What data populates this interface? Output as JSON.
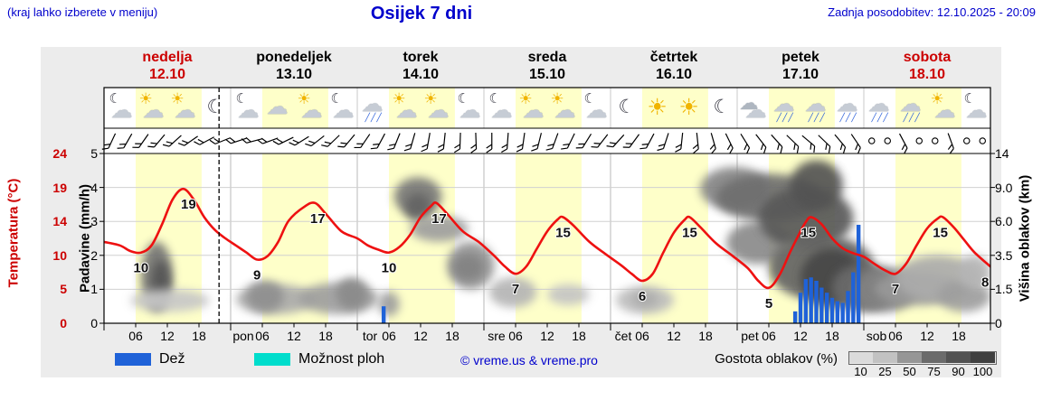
{
  "header": {
    "menu_hint": "(kraj lahko izberete v meniju)",
    "title": "Osijek 7 dni",
    "last_update": "Zadnja posodobitev: 12.10.2025 - 20:09"
  },
  "days": [
    {
      "name": "nedelja",
      "date": "12.10",
      "red": true
    },
    {
      "name": "ponedeljek",
      "date": "13.10",
      "red": false
    },
    {
      "name": "torek",
      "date": "14.10",
      "red": false
    },
    {
      "name": "sreda",
      "date": "15.10",
      "red": false
    },
    {
      "name": "četrtek",
      "date": "16.10",
      "red": false
    },
    {
      "name": "petek",
      "date": "17.10",
      "red": false
    },
    {
      "name": "sobota",
      "date": "18.10",
      "red": true
    }
  ],
  "axes": {
    "temperature": {
      "label": "Temperatura (°C)",
      "ticks": [
        "24",
        "19",
        "14",
        "10",
        "5",
        "0"
      ]
    },
    "precip": {
      "label": "Padavine (mm/h)",
      "ticks": [
        "5",
        "4",
        "3",
        "2",
        "1",
        "0"
      ]
    },
    "cloudheight": {
      "label": "Višina oblakov (km)",
      "ticks": [
        "14",
        "9.0",
        "6.0",
        "3.5",
        "1.5",
        "0"
      ]
    },
    "x_hour_labels": [
      "06",
      "12",
      "18"
    ],
    "x_day_abbr": [
      "pon",
      "tor",
      "sre",
      "čet",
      "pet",
      "sob"
    ]
  },
  "legend": {
    "rain_label": "Dež",
    "showers_label": "Možnost ploh",
    "copyright": "© vreme.us & vreme.pro",
    "cloud_density_label": "Gostota oblakov (%)",
    "density_values": [
      "10",
      "25",
      "50",
      "75",
      "90",
      "100"
    ]
  },
  "colors": {
    "header_blue": "#0000cc",
    "red": "#cc0000",
    "curve": "#ee1111",
    "rain": "#1f62d8",
    "showers": "#00ddcc",
    "day_band": "#feffc9",
    "bg_gray": "#ececec"
  },
  "chart_data": {
    "type": "line",
    "title": "Osijek 7 dni",
    "x_unit": "hours_from_sunday_00",
    "x_range": [
      0,
      168
    ],
    "ylabel_left": "Padavine (mm/h)",
    "ylabel_far_left": "Temperatura (°C)",
    "ylabel_right": "Višina oblakov (km)",
    "day_night": {
      "day_start_hour": 6,
      "day_end_hour": 18.5
    },
    "current_time_hour": 21.8,
    "temperature_c": {
      "series": [
        [
          0,
          11.5
        ],
        [
          3,
          11
        ],
        [
          5,
          10.2
        ],
        [
          7,
          10
        ],
        [
          9,
          11
        ],
        [
          11,
          14
        ],
        [
          13,
          17.5
        ],
        [
          15,
          19
        ],
        [
          17,
          17.5
        ],
        [
          19,
          15
        ],
        [
          21,
          13.2
        ],
        [
          23,
          12
        ],
        [
          25,
          11
        ],
        [
          27,
          10
        ],
        [
          29,
          9
        ],
        [
          31,
          9.5
        ],
        [
          33,
          11.5
        ],
        [
          35,
          14.5
        ],
        [
          38,
          16.5
        ],
        [
          40,
          17
        ],
        [
          42,
          15.5
        ],
        [
          45,
          13
        ],
        [
          48,
          12
        ],
        [
          50,
          11
        ],
        [
          52,
          10.4
        ],
        [
          54,
          10
        ],
        [
          56,
          10.8
        ],
        [
          58,
          12.5
        ],
        [
          60,
          15
        ],
        [
          62,
          16.6
        ],
        [
          63,
          17
        ],
        [
          65,
          15.5
        ],
        [
          68,
          13
        ],
        [
          71,
          11.5
        ],
        [
          74,
          9.5
        ],
        [
          76,
          8
        ],
        [
          78,
          7
        ],
        [
          80,
          8
        ],
        [
          82,
          10.5
        ],
        [
          84,
          13
        ],
        [
          86,
          14.7
        ],
        [
          87,
          15
        ],
        [
          89,
          13.8
        ],
        [
          92,
          11.5
        ],
        [
          95,
          9.8
        ],
        [
          98,
          8.2
        ],
        [
          100,
          7
        ],
        [
          102,
          6
        ],
        [
          104,
          7
        ],
        [
          106,
          10
        ],
        [
          108,
          12.8
        ],
        [
          110,
          14.6
        ],
        [
          111,
          15
        ],
        [
          113,
          13.6
        ],
        [
          116,
          11.3
        ],
        [
          119,
          9.6
        ],
        [
          122,
          7.8
        ],
        [
          124,
          6
        ],
        [
          126,
          5
        ],
        [
          128,
          6.8
        ],
        [
          130,
          10
        ],
        [
          132,
          13
        ],
        [
          133,
          14.3
        ],
        [
          134,
          15
        ],
        [
          136,
          14
        ],
        [
          138,
          12
        ],
        [
          140,
          10.6
        ],
        [
          142,
          9.9
        ],
        [
          144,
          9.4
        ],
        [
          146,
          8.4
        ],
        [
          148,
          7.5
        ],
        [
          150,
          7
        ],
        [
          152,
          8.4
        ],
        [
          154,
          11
        ],
        [
          156,
          13.4
        ],
        [
          158,
          14.8
        ],
        [
          159,
          15
        ],
        [
          161,
          13.6
        ],
        [
          163,
          11.8
        ],
        [
          165,
          10
        ],
        [
          168,
          8
        ]
      ],
      "point_labels": [
        {
          "t": 7,
          "v": 10
        },
        {
          "t": 16,
          "v": 19
        },
        {
          "t": 29,
          "v": 9
        },
        {
          "t": 40.5,
          "v": 17
        },
        {
          "t": 54,
          "v": 10
        },
        {
          "t": 63.5,
          "v": 17
        },
        {
          "t": 78,
          "v": 7
        },
        {
          "t": 87,
          "v": 15
        },
        {
          "t": 102,
          "v": 6
        },
        {
          "t": 111,
          "v": 15
        },
        {
          "t": 126,
          "v": 5
        },
        {
          "t": 133.5,
          "v": 15
        },
        {
          "t": 150,
          "v": 7
        },
        {
          "t": 158.5,
          "v": 15
        },
        {
          "t": 167,
          "v": 8
        }
      ]
    },
    "precip_mm_h": {
      "bars": [
        {
          "t": 53,
          "v": 0.5
        },
        {
          "t": 131,
          "v": 0.35
        },
        {
          "t": 132,
          "v": 0.9
        },
        {
          "t": 133,
          "v": 1.3
        },
        {
          "t": 134,
          "v": 1.35
        },
        {
          "t": 135,
          "v": 1.25
        },
        {
          "t": 136,
          "v": 1.05
        },
        {
          "t": 137,
          "v": 0.9
        },
        {
          "t": 138,
          "v": 0.75
        },
        {
          "t": 139,
          "v": 0.65
        },
        {
          "t": 140,
          "v": 0.6
        },
        {
          "t": 141,
          "v": 0.95
        },
        {
          "t": 142,
          "v": 1.5
        },
        {
          "t": 143,
          "v": 2.9
        }
      ]
    },
    "cloud_cover": {
      "height_anchors_km": [
        0,
        1.5,
        3.5,
        6,
        9,
        14
      ],
      "blobs": [
        {
          "t0": 7,
          "t1": 13,
          "k0": 0.5,
          "k1": 4.5,
          "d": 70
        },
        {
          "t0": 9,
          "t1": 12.5,
          "k0": 0.8,
          "k1": 3.2,
          "d": 88
        },
        {
          "t0": 5,
          "t1": 20,
          "k0": 0.5,
          "k1": 1.5,
          "d": 22
        },
        {
          "t0": 25,
          "t1": 40,
          "k0": 0.4,
          "k1": 1.8,
          "d": 38
        },
        {
          "t0": 27,
          "t1": 34,
          "k0": 0.5,
          "k1": 2.0,
          "d": 55
        },
        {
          "t0": 37,
          "t1": 52,
          "k0": 0.4,
          "k1": 1.9,
          "d": 45
        },
        {
          "t0": 44,
          "t1": 50,
          "k0": 0.6,
          "k1": 2.2,
          "d": 58
        },
        {
          "t0": 52,
          "t1": 56,
          "k0": 0.3,
          "k1": 1.4,
          "d": 45
        },
        {
          "t0": 55,
          "t1": 64,
          "k0": 6.5,
          "k1": 10.5,
          "d": 68
        },
        {
          "t0": 57,
          "t1": 62,
          "k0": 6.0,
          "k1": 8.5,
          "d": 80
        },
        {
          "t0": 58,
          "t1": 69,
          "k0": 4.5,
          "k1": 6.5,
          "d": 45
        },
        {
          "t0": 65,
          "t1": 74,
          "k0": 1.5,
          "k1": 4.5,
          "d": 52
        },
        {
          "t0": 66,
          "t1": 72,
          "k0": 2.0,
          "k1": 3.6,
          "d": 62
        },
        {
          "t0": 73,
          "t1": 82,
          "k0": 0.7,
          "k1": 2.2,
          "d": 32
        },
        {
          "t0": 84,
          "t1": 92,
          "k0": 0.8,
          "k1": 1.8,
          "d": 24
        },
        {
          "t0": 97,
          "t1": 108,
          "k0": 0.4,
          "k1": 1.7,
          "d": 28
        },
        {
          "t0": 100,
          "t1": 105,
          "k0": 0.7,
          "k1": 1.4,
          "d": 38
        },
        {
          "t0": 113,
          "t1": 126,
          "k0": 7,
          "k1": 12,
          "d": 60
        },
        {
          "t0": 116,
          "t1": 136,
          "k0": 6,
          "k1": 11,
          "d": 74
        },
        {
          "t0": 118,
          "t1": 130,
          "k0": 3,
          "k1": 6,
          "d": 58
        },
        {
          "t0": 124,
          "t1": 142,
          "k0": 4,
          "k1": 9,
          "d": 85
        },
        {
          "t0": 130,
          "t1": 140,
          "k0": 7,
          "k1": 13,
          "d": 90
        },
        {
          "t0": 126,
          "t1": 146,
          "k0": 1,
          "k1": 5,
          "d": 80
        },
        {
          "t0": 132,
          "t1": 144,
          "k0": 0.7,
          "k1": 4,
          "d": 96
        },
        {
          "t0": 138,
          "t1": 150,
          "k0": 0.5,
          "k1": 3,
          "d": 75
        },
        {
          "t0": 142,
          "t1": 154,
          "k0": 0.5,
          "k1": 2.8,
          "d": 62
        },
        {
          "t0": 146,
          "t1": 162,
          "k0": 0.8,
          "k1": 2.5,
          "d": 48
        },
        {
          "t0": 150,
          "t1": 166,
          "k0": 1,
          "k1": 3.5,
          "d": 38
        },
        {
          "t0": 158,
          "t1": 168,
          "k0": 0.5,
          "k1": 2,
          "d": 45
        },
        {
          "t0": 162,
          "t1": 168,
          "k0": 1.5,
          "k1": 3.5,
          "d": 32
        }
      ]
    },
    "weather_icons": [
      {
        "t": 3,
        "type": "moon-cloud"
      },
      {
        "t": 9,
        "type": "sun-cloud"
      },
      {
        "t": 15,
        "type": "sun-cloud"
      },
      {
        "t": 21,
        "type": "moon"
      },
      {
        "t": 27,
        "type": "moon-cloud"
      },
      {
        "t": 33,
        "type": "cloud"
      },
      {
        "t": 39,
        "type": "sun-cloud"
      },
      {
        "t": 45,
        "type": "moon-cloud"
      },
      {
        "t": 51,
        "type": "cloud-rain"
      },
      {
        "t": 57,
        "type": "sun-cloud"
      },
      {
        "t": 63,
        "type": "sun-cloud"
      },
      {
        "t": 69,
        "type": "moon-cloud"
      },
      {
        "t": 75,
        "type": "moon-cloud"
      },
      {
        "t": 81,
        "type": "sun-cloud"
      },
      {
        "t": 87,
        "type": "sun-cloud"
      },
      {
        "t": 93,
        "type": "moon-cloud"
      },
      {
        "t": 99,
        "type": "moon"
      },
      {
        "t": 105,
        "type": "sun"
      },
      {
        "t": 111,
        "type": "sun"
      },
      {
        "t": 117,
        "type": "moon"
      },
      {
        "t": 123,
        "type": "clouds"
      },
      {
        "t": 129,
        "type": "cloud-rain"
      },
      {
        "t": 135,
        "type": "cloud-rain"
      },
      {
        "t": 141,
        "type": "cloud-rain"
      },
      {
        "t": 147,
        "type": "cloud-rain"
      },
      {
        "t": 153,
        "type": "cloud-rain"
      },
      {
        "t": 159,
        "type": "sun-cloud"
      },
      {
        "t": 165,
        "type": "moon-cloud"
      }
    ],
    "wind_dirs_deg": [
      205,
      210,
      215,
      220,
      228,
      235,
      242,
      248,
      252,
      255,
      250,
      244,
      238,
      232,
      226,
      220,
      214,
      208,
      202,
      196,
      190,
      186,
      182,
      178,
      180,
      184,
      188,
      194,
      200,
      206,
      212,
      218,
      222,
      216,
      208,
      198,
      186,
      174,
      164,
      154,
      148,
      142,
      138,
      134,
      130,
      134,
      140,
      146,
      null,
      null,
      152,
      null,
      null,
      160,
      null,
      null
    ]
  }
}
